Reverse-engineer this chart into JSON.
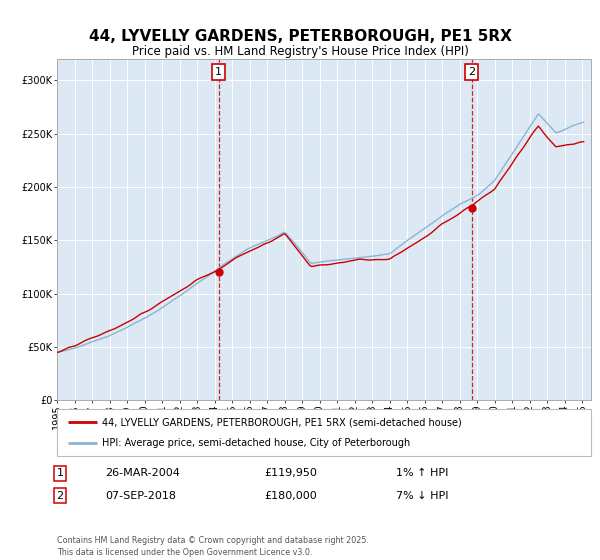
{
  "title": "44, LYVELLY GARDENS, PETERBOROUGH, PE1 5RX",
  "subtitle": "Price paid vs. HM Land Registry's House Price Index (HPI)",
  "bg_color": "#dce9f5",
  "outer_bg_color": "#ffffff",
  "red_line_color": "#cc0000",
  "blue_line_color": "#8ab4d4",
  "marker_color": "#cc0000",
  "dashed_line_color": "#cc0000",
  "year1": 2004.23,
  "year2": 2018.69,
  "price1": 119950,
  "price2": 180000,
  "legend1": "44, LYVELLY GARDENS, PETERBOROUGH, PE1 5RX (semi-detached house)",
  "legend2": "HPI: Average price, semi-detached house, City of Peterborough",
  "note1_label": "1",
  "note1_date": "26-MAR-2004",
  "note1_price": "£119,950",
  "note1_hpi": "1% ↑ HPI",
  "note2_label": "2",
  "note2_date": "07-SEP-2018",
  "note2_price": "£180,000",
  "note2_hpi": "7% ↓ HPI",
  "footer": "Contains HM Land Registry data © Crown copyright and database right 2025.\nThis data is licensed under the Open Government Licence v3.0.",
  "ylim": [
    0,
    320000
  ],
  "yticks": [
    0,
    50000,
    100000,
    150000,
    200000,
    250000,
    300000
  ],
  "x_start_year": 1995,
  "x_end_year": 2025
}
